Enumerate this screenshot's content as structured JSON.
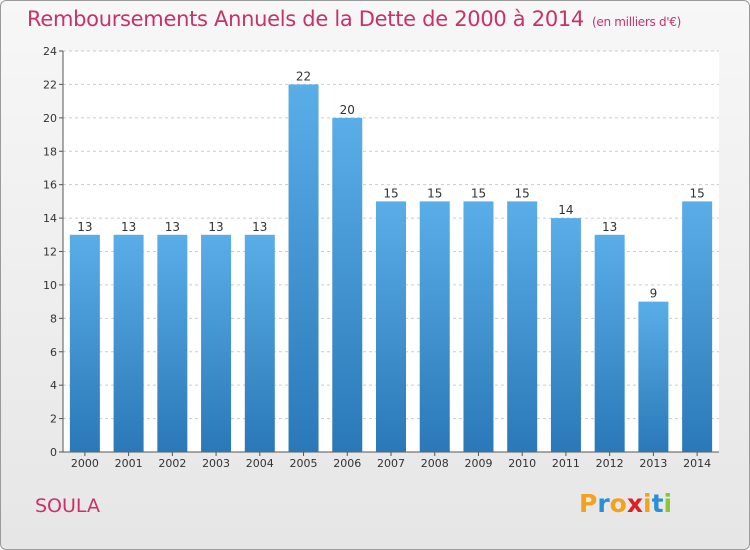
{
  "title": "Remboursements Annuels de la Dette de 2000 à 2014",
  "unit_label": "(en milliers d'€)",
  "commune": "SOULA",
  "logo": {
    "letters": [
      "P",
      "r",
      "o",
      "x",
      "i",
      "t",
      "i"
    ],
    "colors": [
      "#f4a11c",
      "#2a8fd6",
      "#f4a11c",
      "#e02020",
      "#f4a11c",
      "#2a8fd6",
      "#8cc43c"
    ]
  },
  "colors": {
    "bar_top": "#5aaee8",
    "bar_bottom": "#2a78b8",
    "title": "#c8326a",
    "grid": "#cccccc"
  },
  "chart_data": {
    "type": "bar",
    "categories": [
      "2000",
      "2001",
      "2002",
      "2003",
      "2004",
      "2005",
      "2006",
      "2007",
      "2008",
      "2009",
      "2010",
      "2011",
      "2012",
      "2013",
      "2014"
    ],
    "values": [
      13,
      13,
      13,
      13,
      13,
      22,
      20,
      15,
      15,
      15,
      15,
      14,
      13,
      9,
      15
    ],
    "ylim": [
      0,
      24
    ],
    "yticks": [
      0,
      2,
      4,
      6,
      8,
      10,
      12,
      14,
      16,
      18,
      20,
      22,
      24
    ],
    "grid": true
  }
}
